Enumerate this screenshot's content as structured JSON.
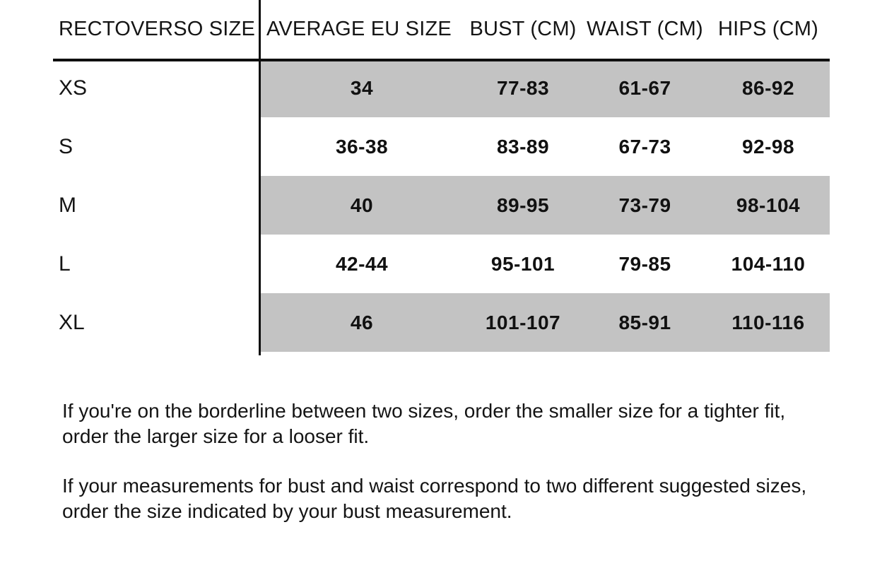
{
  "table": {
    "stripe_color": "#c3c3c3",
    "columns": {
      "size": "RECTOVERSO SIZE",
      "eu": "AVERAGE EU SIZE",
      "bust": "BUST (CM)",
      "waist": "WAIST (CM)",
      "hips": "HIPS (CM)"
    },
    "rows": [
      {
        "size": "XS",
        "eu": "34",
        "bust": "77-83",
        "waist": "61-67",
        "hips": "86-92"
      },
      {
        "size": "S",
        "eu": "36-38",
        "bust": "83-89",
        "waist": "67-73",
        "hips": "92-98"
      },
      {
        "size": "M",
        "eu": "40",
        "bust": "89-95",
        "waist": "73-79",
        "hips": "98-104"
      },
      {
        "size": "L",
        "eu": "42-44",
        "bust": "95-101",
        "waist": "79-85",
        "hips": "104-110"
      },
      {
        "size": "XL",
        "eu": "46",
        "bust": "101-107",
        "waist": "85-91",
        "hips": "110-116"
      }
    ]
  },
  "notes": {
    "paragraph1": "If you're on the borderline between two sizes, order the smaller size for a tighter fit, order the larger size for a looser fit.",
    "paragraph2": "If your measurements for bust and waist correspond to two different suggested sizes, order the size indicated by your bust measurement."
  }
}
